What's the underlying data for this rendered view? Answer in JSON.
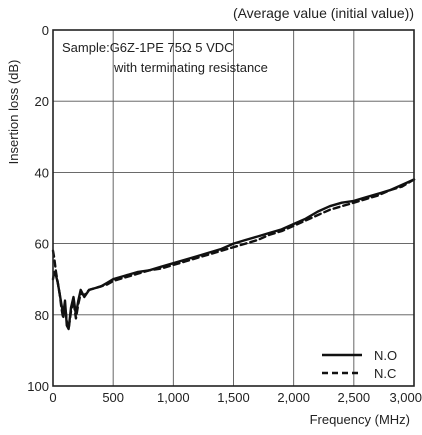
{
  "chart_data": {
    "type": "line",
    "header": "(Average value (initial value))",
    "annotation_line1": "Sample:G6Z-1PE 75Ω 5 VDC",
    "annotation_line2": "with terminating resistance",
    "xlabel": "Frequency (MHz)",
    "ylabel": "Insertion loss (dB)",
    "xlim": [
      0,
      3000
    ],
    "ylim": [
      0,
      100
    ],
    "y_inverted": true,
    "grid": true,
    "legend_position": "bottom-right",
    "x_ticks": [
      {
        "value": 0,
        "label": "0"
      },
      {
        "value": 500,
        "label": "500"
      },
      {
        "value": 1000,
        "label": "1,000"
      },
      {
        "value": 1500,
        "label": "1,500"
      },
      {
        "value": 2000,
        "label": "2,000"
      },
      {
        "value": 2500,
        "label": "2,500"
      },
      {
        "value": 3000,
        "label": "3,000"
      }
    ],
    "y_ticks": [
      {
        "value": 0,
        "label": "0"
      },
      {
        "value": 20,
        "label": "20"
      },
      {
        "value": 40,
        "label": "40"
      },
      {
        "value": 60,
        "label": "60"
      },
      {
        "value": 80,
        "label": "80"
      },
      {
        "value": 100,
        "label": "100"
      }
    ],
    "series": [
      {
        "name": "N.O",
        "style": "solid",
        "color": "#111111",
        "points": [
          [
            0,
            70
          ],
          [
            10,
            68
          ],
          [
            25,
            69
          ],
          [
            40,
            71
          ],
          [
            55,
            74
          ],
          [
            70,
            77
          ],
          [
            85,
            80
          ],
          [
            100,
            76
          ],
          [
            115,
            83
          ],
          [
            130,
            84
          ],
          [
            150,
            78
          ],
          [
            170,
            75
          ],
          [
            190,
            80
          ],
          [
            210,
            76
          ],
          [
            230,
            73
          ],
          [
            260,
            75
          ],
          [
            300,
            73
          ],
          [
            350,
            72.5
          ],
          [
            400,
            72
          ],
          [
            450,
            71
          ],
          [
            500,
            70
          ],
          [
            600,
            69
          ],
          [
            700,
            68
          ],
          [
            800,
            67.5
          ],
          [
            900,
            66.5
          ],
          [
            1000,
            65.5
          ],
          [
            1100,
            64.5
          ],
          [
            1200,
            63.5
          ],
          [
            1300,
            62.5
          ],
          [
            1400,
            61.5
          ],
          [
            1500,
            60
          ],
          [
            1600,
            59
          ],
          [
            1700,
            58
          ],
          [
            1800,
            57
          ],
          [
            1900,
            56
          ],
          [
            2000,
            54.5
          ],
          [
            2100,
            53
          ],
          [
            2200,
            51
          ],
          [
            2300,
            49.5
          ],
          [
            2400,
            48.5
          ],
          [
            2500,
            48
          ],
          [
            2600,
            47
          ],
          [
            2700,
            46
          ],
          [
            2800,
            45
          ],
          [
            2900,
            43.5
          ],
          [
            3000,
            42
          ]
        ]
      },
      {
        "name": "N.C",
        "style": "dashed",
        "color": "#111111",
        "points": [
          [
            0,
            62
          ],
          [
            10,
            64
          ],
          [
            25,
            68
          ],
          [
            40,
            71
          ],
          [
            55,
            74
          ],
          [
            70,
            78
          ],
          [
            85,
            81
          ],
          [
            100,
            77
          ],
          [
            115,
            82
          ],
          [
            130,
            84
          ],
          [
            150,
            79
          ],
          [
            170,
            76
          ],
          [
            190,
            81
          ],
          [
            210,
            77
          ],
          [
            230,
            74
          ],
          [
            260,
            74.5
          ],
          [
            300,
            73
          ],
          [
            350,
            72.5
          ],
          [
            400,
            72
          ],
          [
            450,
            71.5
          ],
          [
            500,
            70.5
          ],
          [
            600,
            69.5
          ],
          [
            700,
            68.5
          ],
          [
            800,
            67.5
          ],
          [
            900,
            67
          ],
          [
            1000,
            66
          ],
          [
            1100,
            65
          ],
          [
            1200,
            64
          ],
          [
            1300,
            63
          ],
          [
            1400,
            62
          ],
          [
            1500,
            61
          ],
          [
            1600,
            60
          ],
          [
            1700,
            59
          ],
          [
            1800,
            57.5
          ],
          [
            1900,
            56.5
          ],
          [
            2000,
            55
          ],
          [
            2100,
            53.5
          ],
          [
            2200,
            52
          ],
          [
            2300,
            50.5
          ],
          [
            2400,
            49.5
          ],
          [
            2500,
            48.5
          ],
          [
            2600,
            47.5
          ],
          [
            2700,
            46.5
          ],
          [
            2800,
            45
          ],
          [
            2900,
            44
          ],
          [
            3000,
            42
          ]
        ]
      }
    ]
  }
}
